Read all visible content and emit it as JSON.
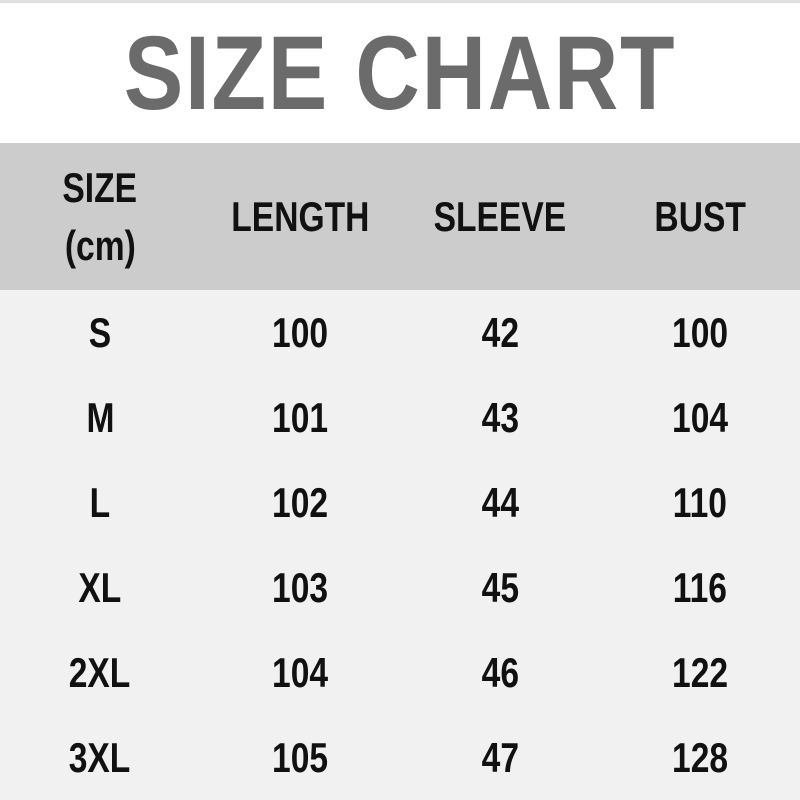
{
  "page": {
    "title": "SIZE CHART"
  },
  "colors": {
    "title_text": "#6b6b6b",
    "header_background": "#cccccc",
    "body_background": "#f1f1f2",
    "cell_text": "#111111",
    "top_line": "#dfdfdf",
    "title_section_background": "#ffffff"
  },
  "table": {
    "header": {
      "size_line1": "SIZE",
      "size_line2": "(cm)",
      "length": "LENGTH",
      "sleeve": "SLEEVE",
      "bust": "BUST"
    },
    "rows": [
      {
        "size": "S",
        "length": "100",
        "sleeve": "42",
        "bust": "100"
      },
      {
        "size": "M",
        "length": "101",
        "sleeve": "43",
        "bust": "104"
      },
      {
        "size": "L",
        "length": "102",
        "sleeve": "44",
        "bust": "110"
      },
      {
        "size": "XL",
        "length": "103",
        "sleeve": "45",
        "bust": "116"
      },
      {
        "size": "2XL",
        "length": "104",
        "sleeve": "46",
        "bust": "122"
      },
      {
        "size": "3XL",
        "length": "105",
        "sleeve": "47",
        "bust": "128"
      }
    ]
  },
  "chart_data": {
    "type": "table",
    "title": "SIZE CHART",
    "units": "cm",
    "columns": [
      "SIZE (cm)",
      "LENGTH",
      "SLEEVE",
      "BUST"
    ],
    "rows": [
      [
        "S",
        100,
        42,
        100
      ],
      [
        "M",
        101,
        43,
        104
      ],
      [
        "L",
        102,
        44,
        110
      ],
      [
        "XL",
        103,
        45,
        116
      ],
      [
        "2XL",
        104,
        46,
        122
      ],
      [
        "3XL",
        105,
        47,
        128
      ]
    ]
  }
}
